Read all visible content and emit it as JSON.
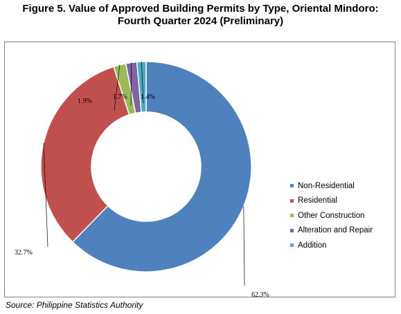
{
  "title_line1": "Figure 5. Value of Approved Building Permits by Type, Oriental Mindoro:",
  "title_line2": "Fourth Quarter 2024 (Preliminary)",
  "source": "Source: Philippine Statistics Authority",
  "chart_data": {
    "type": "pie",
    "donut": true,
    "legend_position": "right",
    "categories": [
      "Non-Residential",
      "Residential",
      "Other Construction",
      "Alteration and Repair",
      "Addition"
    ],
    "values": [
      62.3,
      32.7,
      1.9,
      1.7,
      1.4
    ],
    "labels": [
      "62.3%",
      "32.7%",
      "1.9%",
      "1.7%",
      "1.4%"
    ],
    "colors": [
      "#4f81bd",
      "#c0504d",
      "#9bbb59",
      "#8064a2",
      "#4bacc6"
    ]
  }
}
